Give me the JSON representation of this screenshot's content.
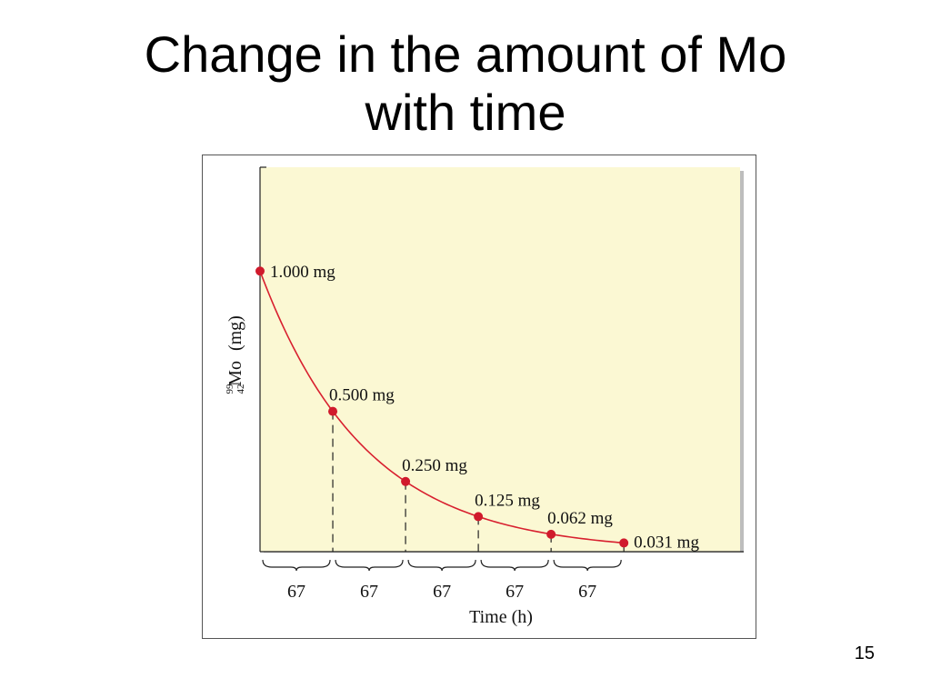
{
  "slide": {
    "title_line1": "Change in the amount of Mo",
    "title_line2": "with time",
    "page_number": "15"
  },
  "chart_data": {
    "type": "line",
    "title": "",
    "xlabel": "Time (h)",
    "ylabel_isotope": {
      "mass_number": "99",
      "atomic_number": "42",
      "symbol": "Mo",
      "unit": "(mg)"
    },
    "x": [
      0,
      67,
      134,
      201,
      268,
      335
    ],
    "values": [
      1.0,
      0.5,
      0.25,
      0.125,
      0.062,
      0.031
    ],
    "point_labels": [
      "1.000 mg",
      "0.500 mg",
      "0.250 mg",
      "0.125 mg",
      "0.062 mg",
      "0.031 mg"
    ],
    "interval_labels": [
      "67",
      "67",
      "67",
      "67",
      "67"
    ],
    "xlim": [
      0,
      442
    ],
    "ylim": [
      0,
      1.37
    ],
    "grid": false,
    "colors": {
      "plot_background": "#fbf8d3",
      "curve": "#d8202f",
      "points": "#d01a2c",
      "axis": "#222222"
    }
  }
}
